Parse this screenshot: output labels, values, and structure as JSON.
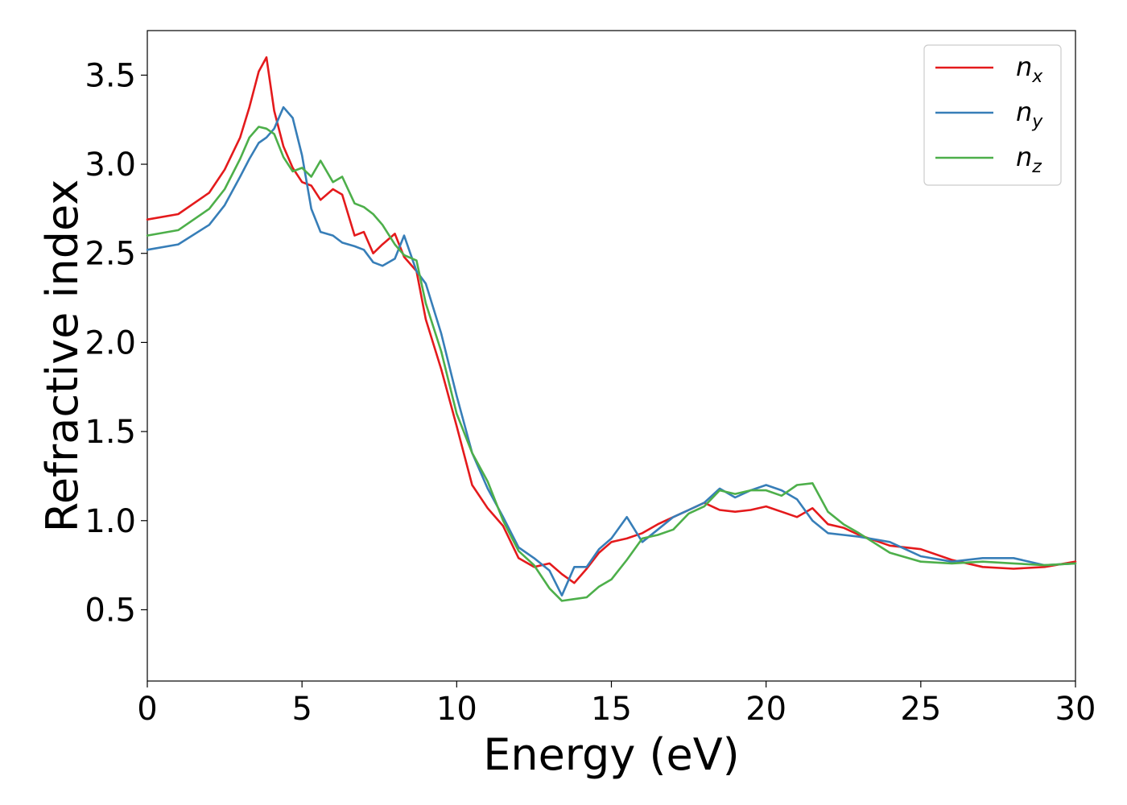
{
  "chart_data": {
    "type": "line",
    "xlabel": "Energy (eV)",
    "ylabel": "Refractive index",
    "xlim": [
      0,
      30
    ],
    "ylim": [
      0.1,
      3.75
    ],
    "grid": false,
    "legend_position": "top-right",
    "x_ticks": [
      "0",
      "5",
      "10",
      "15",
      "20",
      "25",
      "30"
    ],
    "y_ticks": [
      "0.5",
      "1.0",
      "1.5",
      "2.0",
      "2.5",
      "3.0",
      "3.5"
    ],
    "series": [
      {
        "name": "n_x",
        "label_base": "n",
        "label_sub": "x",
        "color": "#e41a1c",
        "x": [
          0,
          1,
          2,
          2.5,
          3,
          3.3,
          3.6,
          3.85,
          4.1,
          4.4,
          4.7,
          5.0,
          5.3,
          5.6,
          6.0,
          6.3,
          6.7,
          7.0,
          7.3,
          7.6,
          8.0,
          8.3,
          8.7,
          9.0,
          9.5,
          10.0,
          10.5,
          11.0,
          11.5,
          12.0,
          12.5,
          13.0,
          13.4,
          13.8,
          14.2,
          14.6,
          15.0,
          15.5,
          16.0,
          16.5,
          17.0,
          17.5,
          18.0,
          18.5,
          19.0,
          19.5,
          20.0,
          20.5,
          21.0,
          21.5,
          22.0,
          22.5,
          23.0,
          24.0,
          25.0,
          26.0,
          27.0,
          28.0,
          29.0,
          30.0
        ],
        "y": [
          2.69,
          2.72,
          2.84,
          2.97,
          3.15,
          3.32,
          3.52,
          3.6,
          3.3,
          3.1,
          2.98,
          2.9,
          2.88,
          2.8,
          2.86,
          2.83,
          2.6,
          2.62,
          2.5,
          2.55,
          2.61,
          2.48,
          2.4,
          2.13,
          1.85,
          1.53,
          1.2,
          1.07,
          0.97,
          0.79,
          0.74,
          0.76,
          0.7,
          0.65,
          0.73,
          0.82,
          0.88,
          0.9,
          0.93,
          0.98,
          1.02,
          1.06,
          1.1,
          1.06,
          1.05,
          1.06,
          1.08,
          1.05,
          1.02,
          1.07,
          0.98,
          0.96,
          0.92,
          0.86,
          0.84,
          0.78,
          0.74,
          0.73,
          0.74,
          0.77
        ]
      },
      {
        "name": "n_y",
        "label_base": "n",
        "label_sub": "y",
        "color": "#377eb8",
        "x": [
          0,
          1,
          2,
          2.5,
          3,
          3.3,
          3.6,
          3.85,
          4.1,
          4.4,
          4.7,
          5.0,
          5.3,
          5.6,
          6.0,
          6.3,
          6.7,
          7.0,
          7.3,
          7.6,
          8.0,
          8.3,
          8.7,
          9.0,
          9.5,
          10.0,
          10.5,
          11.0,
          11.5,
          12.0,
          12.5,
          13.0,
          13.4,
          13.8,
          14.2,
          14.6,
          15.0,
          15.5,
          16.0,
          16.5,
          17.0,
          17.5,
          18.0,
          18.5,
          19.0,
          19.5,
          20.0,
          20.5,
          21.0,
          21.5,
          22.0,
          22.5,
          23.0,
          24.0,
          25.0,
          26.0,
          27.0,
          28.0,
          29.0,
          30.0
        ],
        "y": [
          2.52,
          2.55,
          2.66,
          2.77,
          2.93,
          3.03,
          3.12,
          3.15,
          3.2,
          3.32,
          3.26,
          3.05,
          2.75,
          2.62,
          2.6,
          2.56,
          2.54,
          2.52,
          2.45,
          2.43,
          2.47,
          2.6,
          2.4,
          2.33,
          2.05,
          1.7,
          1.38,
          1.18,
          1.02,
          0.85,
          0.79,
          0.72,
          0.58,
          0.74,
          0.74,
          0.84,
          0.9,
          1.02,
          0.88,
          0.95,
          1.02,
          1.06,
          1.1,
          1.18,
          1.13,
          1.17,
          1.2,
          1.17,
          1.12,
          1.0,
          0.93,
          0.92,
          0.91,
          0.88,
          0.8,
          0.77,
          0.79,
          0.79,
          0.75,
          0.76
        ]
      },
      {
        "name": "n_z",
        "label_base": "n",
        "label_sub": "z",
        "color": "#4daf4a",
        "x": [
          0,
          1,
          2,
          2.5,
          3,
          3.3,
          3.6,
          3.85,
          4.1,
          4.4,
          4.7,
          5.0,
          5.3,
          5.6,
          6.0,
          6.3,
          6.7,
          7.0,
          7.3,
          7.6,
          8.0,
          8.3,
          8.7,
          9.0,
          9.5,
          10.0,
          10.5,
          11.0,
          11.5,
          12.0,
          12.5,
          13.0,
          13.4,
          13.8,
          14.2,
          14.6,
          15.0,
          15.5,
          16.0,
          16.5,
          17.0,
          17.5,
          18.0,
          18.5,
          19.0,
          19.5,
          20.0,
          20.5,
          21.0,
          21.5,
          22.0,
          22.5,
          23.0,
          24.0,
          25.0,
          26.0,
          27.0,
          28.0,
          29.0,
          30.0
        ],
        "y": [
          2.6,
          2.63,
          2.75,
          2.86,
          3.03,
          3.15,
          3.21,
          3.2,
          3.17,
          3.04,
          2.96,
          2.98,
          2.93,
          3.02,
          2.9,
          2.93,
          2.78,
          2.76,
          2.72,
          2.66,
          2.55,
          2.49,
          2.46,
          2.22,
          1.95,
          1.6,
          1.38,
          1.22,
          1.0,
          0.83,
          0.75,
          0.62,
          0.55,
          0.56,
          0.57,
          0.63,
          0.67,
          0.78,
          0.9,
          0.92,
          0.95,
          1.04,
          1.08,
          1.17,
          1.15,
          1.17,
          1.17,
          1.14,
          1.2,
          1.21,
          1.05,
          0.98,
          0.93,
          0.82,
          0.77,
          0.76,
          0.77,
          0.76,
          0.75,
          0.76
        ]
      }
    ]
  }
}
